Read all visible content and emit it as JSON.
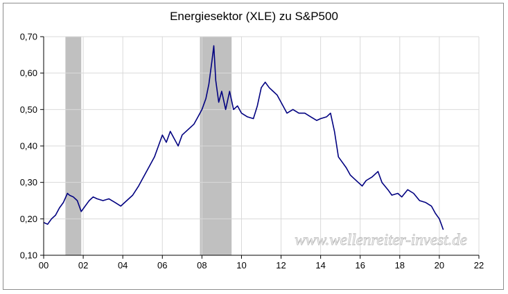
{
  "chart_data": {
    "type": "line",
    "title": "Energiesektor (XLE) zu S&P500",
    "xlabel": "",
    "ylabel": "",
    "xlim": [
      0,
      22
    ],
    "ylim": [
      0.1,
      0.7
    ],
    "x_ticks": [
      "00",
      "02",
      "04",
      "06",
      "08",
      "10",
      "12",
      "14",
      "16",
      "18",
      "20",
      "22"
    ],
    "y_ticks": [
      "0,10",
      "0,20",
      "0,30",
      "0,40",
      "0,50",
      "0,60",
      "0,70"
    ],
    "grid": true,
    "legend": "none",
    "line_color": "#000080",
    "shade_color": "#c0c0c0",
    "shaded_periods": [
      [
        1.1,
        1.9
      ],
      [
        7.9,
        9.5
      ]
    ],
    "watermark": "www.wellenreiter-invest.de",
    "series": [
      {
        "values": [
          [
            0.0,
            0.19
          ],
          [
            0.2,
            0.185
          ],
          [
            0.4,
            0.2
          ],
          [
            0.6,
            0.21
          ],
          [
            0.8,
            0.23
          ],
          [
            1.0,
            0.245
          ],
          [
            1.2,
            0.27
          ],
          [
            1.3,
            0.265
          ],
          [
            1.5,
            0.26
          ],
          [
            1.7,
            0.25
          ],
          [
            1.9,
            0.22
          ],
          [
            2.1,
            0.235
          ],
          [
            2.3,
            0.25
          ],
          [
            2.5,
            0.26
          ],
          [
            2.7,
            0.255
          ],
          [
            3.0,
            0.25
          ],
          [
            3.3,
            0.255
          ],
          [
            3.6,
            0.245
          ],
          [
            3.9,
            0.235
          ],
          [
            4.2,
            0.25
          ],
          [
            4.5,
            0.265
          ],
          [
            4.8,
            0.29
          ],
          [
            5.0,
            0.31
          ],
          [
            5.3,
            0.34
          ],
          [
            5.6,
            0.37
          ],
          [
            5.8,
            0.4
          ],
          [
            6.0,
            0.43
          ],
          [
            6.2,
            0.41
          ],
          [
            6.4,
            0.44
          ],
          [
            6.6,
            0.42
          ],
          [
            6.8,
            0.4
          ],
          [
            7.0,
            0.43
          ],
          [
            7.2,
            0.44
          ],
          [
            7.4,
            0.45
          ],
          [
            7.6,
            0.46
          ],
          [
            7.8,
            0.48
          ],
          [
            8.0,
            0.5
          ],
          [
            8.2,
            0.53
          ],
          [
            8.35,
            0.57
          ],
          [
            8.5,
            0.63
          ],
          [
            8.6,
            0.675
          ],
          [
            8.7,
            0.58
          ],
          [
            8.85,
            0.52
          ],
          [
            9.0,
            0.55
          ],
          [
            9.2,
            0.5
          ],
          [
            9.4,
            0.55
          ],
          [
            9.6,
            0.5
          ],
          [
            9.8,
            0.51
          ],
          [
            10.0,
            0.49
          ],
          [
            10.3,
            0.48
          ],
          [
            10.6,
            0.475
          ],
          [
            10.8,
            0.51
          ],
          [
            11.0,
            0.56
          ],
          [
            11.2,
            0.575
          ],
          [
            11.4,
            0.56
          ],
          [
            11.6,
            0.55
          ],
          [
            11.8,
            0.54
          ],
          [
            12.0,
            0.52
          ],
          [
            12.3,
            0.49
          ],
          [
            12.6,
            0.5
          ],
          [
            12.9,
            0.49
          ],
          [
            13.2,
            0.49
          ],
          [
            13.5,
            0.48
          ],
          [
            13.8,
            0.47
          ],
          [
            14.0,
            0.475
          ],
          [
            14.3,
            0.48
          ],
          [
            14.5,
            0.49
          ],
          [
            14.7,
            0.44
          ],
          [
            14.9,
            0.37
          ],
          [
            15.1,
            0.355
          ],
          [
            15.3,
            0.34
          ],
          [
            15.5,
            0.32
          ],
          [
            15.7,
            0.31
          ],
          [
            15.9,
            0.3
          ],
          [
            16.1,
            0.29
          ],
          [
            16.3,
            0.305
          ],
          [
            16.6,
            0.315
          ],
          [
            16.9,
            0.33
          ],
          [
            17.1,
            0.3
          ],
          [
            17.4,
            0.28
          ],
          [
            17.6,
            0.265
          ],
          [
            17.9,
            0.27
          ],
          [
            18.1,
            0.26
          ],
          [
            18.4,
            0.28
          ],
          [
            18.7,
            0.27
          ],
          [
            19.0,
            0.25
          ],
          [
            19.3,
            0.245
          ],
          [
            19.6,
            0.235
          ],
          [
            19.8,
            0.215
          ],
          [
            20.0,
            0.2
          ],
          [
            20.1,
            0.185
          ],
          [
            20.2,
            0.17
          ]
        ]
      }
    ]
  }
}
